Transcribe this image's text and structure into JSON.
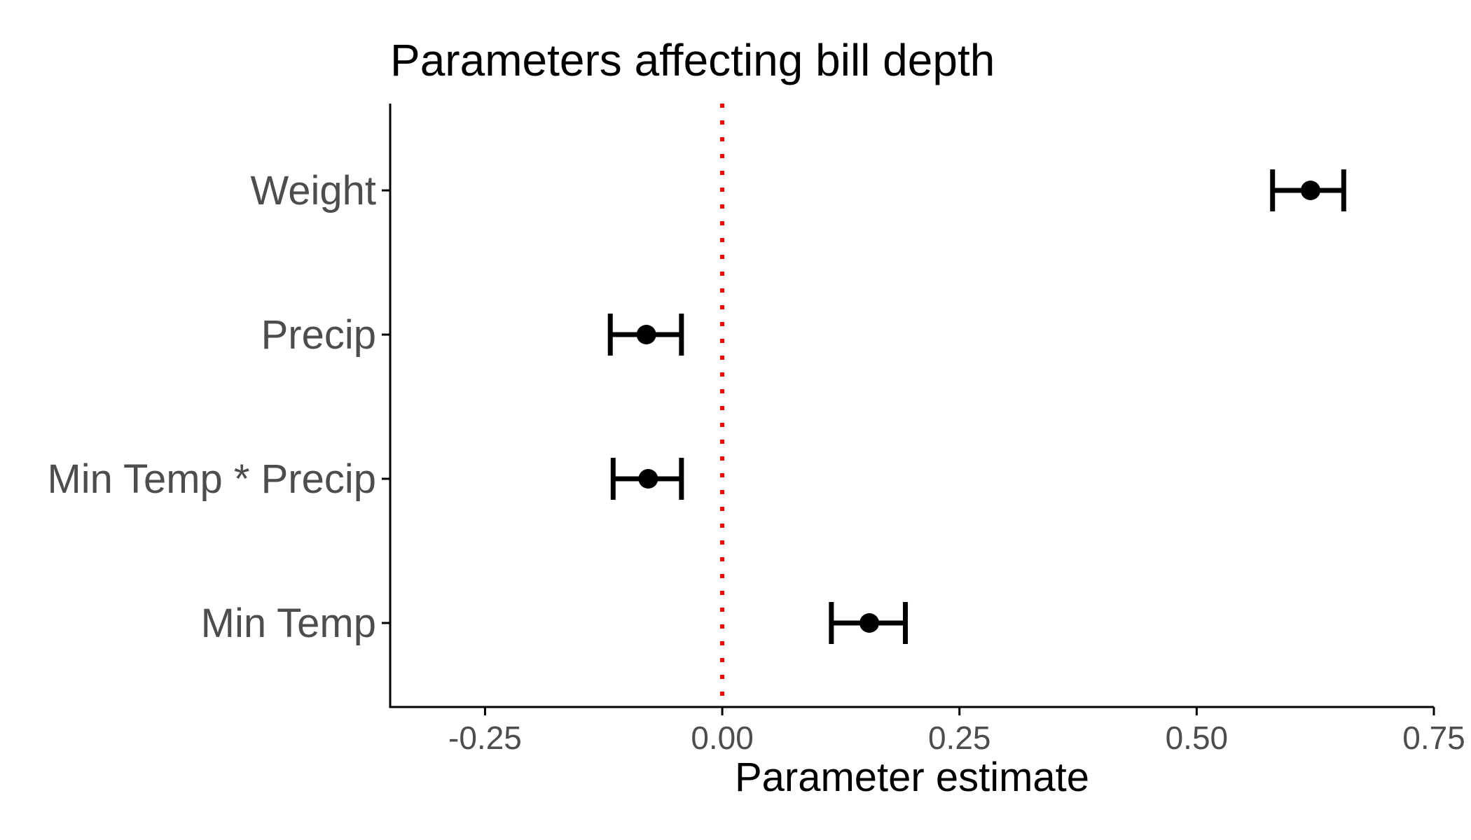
{
  "chart_data": {
    "type": "scatter",
    "title": "Parameters affecting bill depth",
    "xlabel": "Parameter estimate",
    "ylabel": "",
    "xlim": [
      -0.35,
      0.75
    ],
    "xticks": [
      -0.25,
      0.0,
      0.25,
      0.5,
      0.75
    ],
    "xtick_labels": [
      "-0.25",
      "0.00",
      "0.25",
      "0.50",
      "0.75"
    ],
    "reference_line": {
      "x": 0.0,
      "color": "#ff0000",
      "style": "dotted"
    },
    "grid": false,
    "legend": "none",
    "points": [
      {
        "category": "Weight",
        "estimate": 0.62,
        "lower": 0.58,
        "upper": 0.655
      },
      {
        "category": "Precip",
        "estimate": -0.08,
        "lower": -0.118,
        "upper": -0.043
      },
      {
        "category": "Min Temp * Precip",
        "estimate": -0.078,
        "lower": -0.115,
        "upper": -0.043
      },
      {
        "category": "Min Temp",
        "estimate": 0.155,
        "lower": 0.115,
        "upper": 0.193
      }
    ],
    "colors": {
      "points": "#000000",
      "axis": "#000000",
      "reference": "#ff0000",
      "tick_text": "#4d4d4d"
    }
  }
}
